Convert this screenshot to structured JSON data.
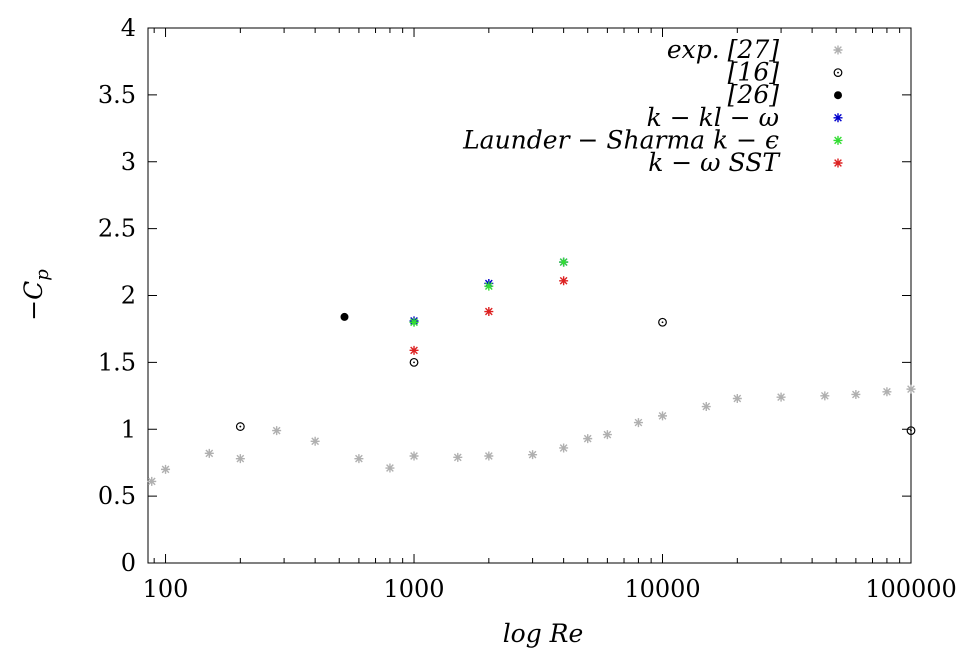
{
  "chart_data": {
    "type": "scatter",
    "xscale": "log",
    "xlim": [
      85,
      100000
    ],
    "ylim": [
      0,
      4
    ],
    "xlabel": "log Re",
    "ylabel": "−C_p",
    "x_ticks": [
      100,
      1000,
      10000,
      100000
    ],
    "x_tick_labels": [
      "100",
      "1000",
      "10000",
      "100000"
    ],
    "y_ticks": [
      0,
      0.5,
      1,
      1.5,
      2,
      2.5,
      3,
      3.5,
      4
    ],
    "y_tick_labels": [
      "0",
      "0.5",
      "1",
      "1.5",
      "2",
      "2.5",
      "3",
      "3.5",
      "4"
    ],
    "grid": false,
    "legend_position": "top-right",
    "series": [
      {
        "name": "exp. [27]",
        "marker": "asterisk",
        "color": "#b0b0b0",
        "points": [
          [
            88,
            0.61
          ],
          [
            100,
            0.7
          ],
          [
            150,
            0.82
          ],
          [
            200,
            0.78
          ],
          [
            280,
            0.99
          ],
          [
            400,
            0.91
          ],
          [
            600,
            0.78
          ],
          [
            800,
            0.71
          ],
          [
            1000,
            0.8
          ],
          [
            1500,
            0.79
          ],
          [
            2000,
            0.8
          ],
          [
            3000,
            0.81
          ],
          [
            4000,
            0.86
          ],
          [
            5000,
            0.93
          ],
          [
            6000,
            0.96
          ],
          [
            8000,
            1.05
          ],
          [
            10000,
            1.1
          ],
          [
            15000,
            1.17
          ],
          [
            20000,
            1.23
          ],
          [
            30000,
            1.24
          ],
          [
            45000,
            1.25
          ],
          [
            60000,
            1.26
          ],
          [
            80000,
            1.28
          ],
          [
            100000,
            1.3
          ]
        ]
      },
      {
        "name": "[16]",
        "marker": "open-circle",
        "color": "#000000",
        "points": [
          [
            200,
            1.02
          ],
          [
            1000,
            1.5
          ],
          [
            10000,
            1.8
          ],
          [
            100000,
            0.99
          ]
        ]
      },
      {
        "name": "[26]",
        "marker": "filled-circle",
        "color": "#000000",
        "points": [
          [
            525,
            1.84
          ]
        ]
      },
      {
        "name": "k − kl − ω",
        "marker": "asterisk",
        "color": "#0000cc",
        "points": [
          [
            1000,
            1.81
          ],
          [
            2000,
            2.09
          ],
          [
            4000,
            2.25
          ]
        ]
      },
      {
        "name": "Launder − Sharma k − ϵ",
        "marker": "asterisk",
        "color": "#33dd33",
        "points": [
          [
            1000,
            1.8
          ],
          [
            2000,
            2.07
          ],
          [
            4000,
            2.25
          ]
        ]
      },
      {
        "name": "k − ω SST",
        "marker": "asterisk",
        "color": "#dd2222",
        "points": [
          [
            1000,
            1.59
          ],
          [
            2000,
            1.88
          ],
          [
            4000,
            2.11
          ]
        ]
      }
    ]
  }
}
